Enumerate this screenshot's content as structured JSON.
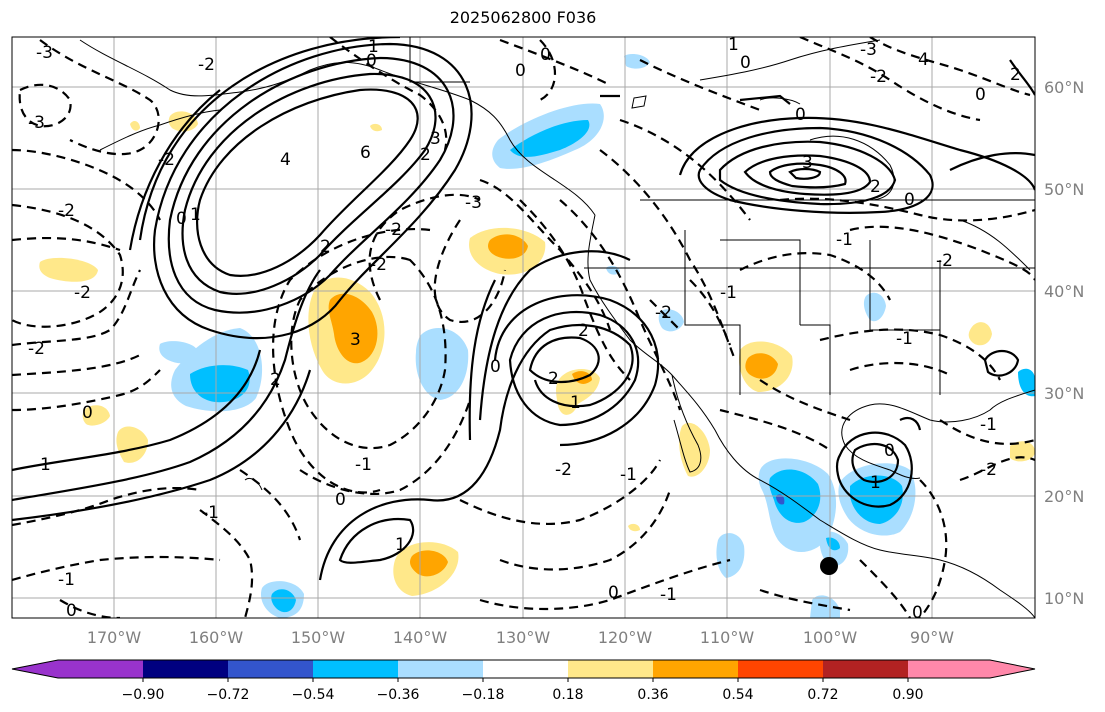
{
  "title": "2025062800 F036",
  "map": {
    "lon_labels": [
      "170°W",
      "160°W",
      "150°W",
      "140°W",
      "130°W",
      "120°W",
      "110°W",
      "100°W",
      "90°W"
    ],
    "lat_labels": [
      "60°N",
      "50°N",
      "40°N",
      "30°N",
      "20°N",
      "10°N"
    ],
    "extent": {
      "lon_min": -180,
      "lon_max": -80,
      "lat_min": 8,
      "lat_max": 65
    },
    "contour_labels": [
      "-3",
      "-2",
      "-1",
      "0",
      "1",
      "2",
      "3",
      "4",
      "6"
    ]
  },
  "colorbar": {
    "ticks": [
      "−0.90",
      "−0.72",
      "−0.54",
      "−0.36",
      "−0.18",
      "0.18",
      "0.36",
      "0.54",
      "0.72",
      "0.90"
    ],
    "colors": [
      "#9933cc",
      "#000080",
      "#3355cc",
      "#00bfff",
      "#aadeff",
      "#ffffff",
      "#ffe88a",
      "#ffa500",
      "#ff4500",
      "#b22222",
      "#ff88aa"
    ]
  }
}
